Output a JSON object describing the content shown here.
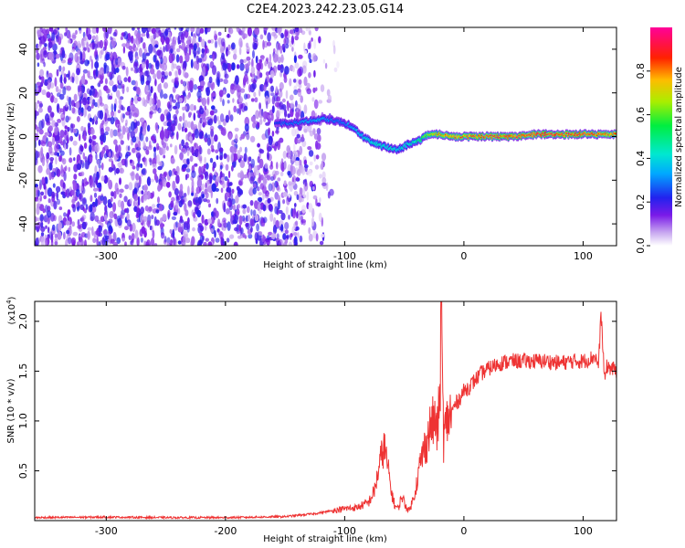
{
  "title": "C2E4.2023.242.23.05.G14",
  "chart_data": [
    {
      "type": "heatmap",
      "xlabel": "Height of straight line (km)",
      "ylabel": "Frequency (Hz)",
      "xlim": [
        -360,
        128
      ],
      "ylim": [
        -50,
        50
      ],
      "x_ticks": [
        -300,
        -200,
        -100,
        0,
        100
      ],
      "y_ticks": [
        -40,
        -20,
        0,
        20,
        40
      ],
      "colorbar": {
        "label": "Normalized spectral amplitude",
        "range": [
          0.0,
          1.0
        ],
        "ticks": [
          0.0,
          0.2,
          0.4,
          0.6,
          0.8
        ],
        "tick_labels": [
          "0.0",
          "0.2",
          "0.4",
          "0.6",
          "0.8"
        ]
      },
      "noise_region_x": [
        -360,
        -105
      ],
      "signal_ridge": {
        "x": [
          -158,
          -145,
          -130,
          -118,
          -105,
          -95,
          -85,
          -75,
          -65,
          -55,
          -45,
          -38,
          -30,
          -20,
          -10,
          0,
          20,
          40,
          60,
          80,
          100,
          128
        ],
        "y": [
          6,
          6,
          7,
          8,
          7,
          5,
          0,
          -3,
          -5,
          -6,
          -3,
          -2,
          1,
          1,
          0,
          0,
          0,
          0,
          1,
          1,
          1,
          1
        ],
        "amp": [
          0.25,
          0.3,
          0.35,
          0.35,
          0.3,
          0.35,
          0.4,
          0.45,
          0.45,
          0.4,
          0.45,
          0.5,
          0.7,
          0.8,
          0.85,
          0.85,
          0.9,
          0.9,
          0.9,
          0.92,
          0.9,
          0.85
        ]
      }
    },
    {
      "type": "line",
      "xlabel": "Height of straight line (km)",
      "ylabel": "SNR (10 * v/v)",
      "y_multiplier_label": "(x10",
      "y_multiplier_exp": "4",
      "y_multiplier_close": ")",
      "xlim": [
        -360,
        128
      ],
      "ylim": [
        0,
        2.2
      ],
      "x_ticks": [
        -300,
        -200,
        -100,
        0,
        100
      ],
      "y_ticks": [
        0.5,
        1.0,
        1.5,
        2.0
      ],
      "y_tick_labels": [
        "0.5",
        "1.0",
        "1.5",
        "2.0"
      ],
      "color": "#ee3333",
      "series": [
        {
          "x": [
            -360,
            -300,
            -250,
            -200,
            -150,
            -125,
            -110,
            -100,
            -90,
            -80,
            -75,
            -70,
            -67,
            -64,
            -61,
            -58,
            -55,
            -52,
            -49,
            -46,
            -43,
            -40,
            -37,
            -34,
            -31,
            -28,
            -25,
            -22,
            -20,
            -19,
            -18,
            -17,
            -16,
            -14,
            -12,
            -10,
            -8,
            -5,
            0,
            5,
            10,
            15,
            20,
            25,
            30,
            40,
            50,
            60,
            70,
            80,
            90,
            100,
            105,
            110,
            113,
            115,
            118,
            120,
            125,
            128
          ],
          "y": [
            0.03,
            0.035,
            0.03,
            0.03,
            0.04,
            0.07,
            0.1,
            0.12,
            0.13,
            0.18,
            0.3,
            0.6,
            0.75,
            0.55,
            0.3,
            0.15,
            0.12,
            0.25,
            0.15,
            0.1,
            0.2,
            0.35,
            0.55,
            0.7,
            0.8,
            0.95,
            1.0,
            0.9,
            1.3,
            2.15,
            1.5,
            0.8,
            0.9,
            1.0,
            1.05,
            1.1,
            1.15,
            1.2,
            1.3,
            1.35,
            1.42,
            1.48,
            1.52,
            1.55,
            1.58,
            1.6,
            1.6,
            1.6,
            1.6,
            1.58,
            1.6,
            1.6,
            1.62,
            1.65,
            1.55,
            2.1,
            1.4,
            1.55,
            1.52,
            1.5
          ]
        }
      ]
    }
  ]
}
